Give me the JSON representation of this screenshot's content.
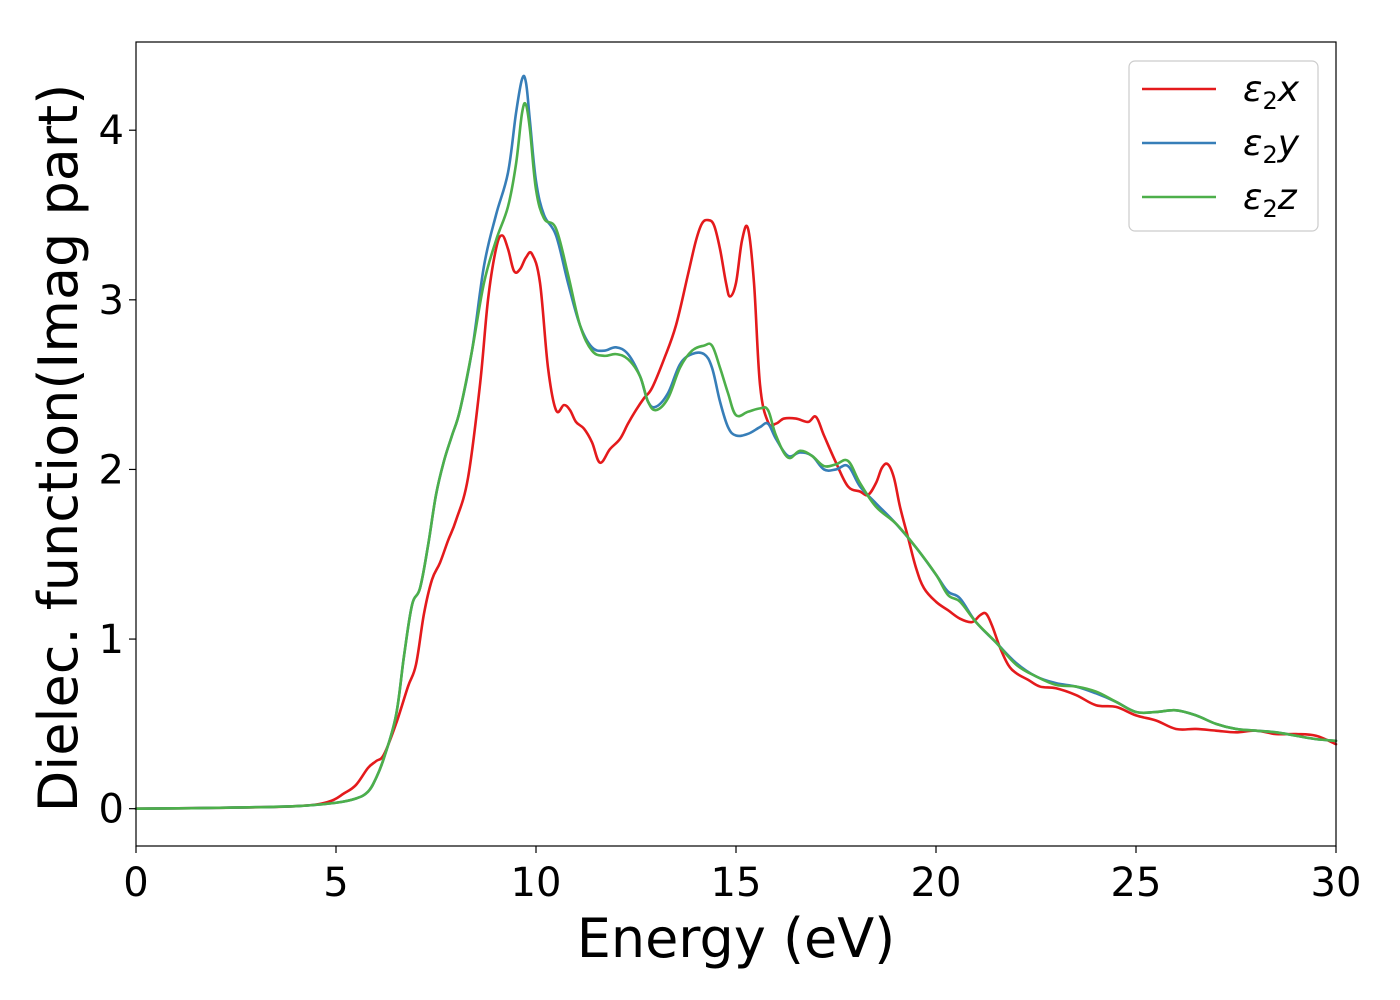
{
  "chart_data": {
    "type": "line",
    "title": "",
    "xlabel": "Energy (eV)",
    "ylabel": "Dielec. function(Imag part)",
    "xlim": [
      0,
      30
    ],
    "ylim": [
      -0.22,
      4.52
    ],
    "xticks": [
      0,
      5,
      10,
      15,
      20,
      25,
      30
    ],
    "yticks": [
      0,
      1,
      2,
      3,
      4
    ],
    "grid": false,
    "legend_position": "top-right",
    "series": [
      {
        "name": "ε2x",
        "legend_main": "ε",
        "legend_sub": "2",
        "legend_axis": "x",
        "color": "#e41a1c",
        "x": [
          0,
          2,
          4,
          4.8,
          5.2,
          5.5,
          5.8,
          6.0,
          6.2,
          6.5,
          6.8,
          7.0,
          7.2,
          7.4,
          7.6,
          7.8,
          8.0,
          8.3,
          8.6,
          8.8,
          9.0,
          9.15,
          9.3,
          9.45,
          9.6,
          9.75,
          9.9,
          10.1,
          10.3,
          10.5,
          10.7,
          10.85,
          11.0,
          11.2,
          11.4,
          11.6,
          11.85,
          12.1,
          12.3,
          12.5,
          12.7,
          12.9,
          13.2,
          13.5,
          13.8,
          14.0,
          14.15,
          14.3,
          14.45,
          14.6,
          14.75,
          14.85,
          15.0,
          15.15,
          15.3,
          15.45,
          15.6,
          15.8,
          16.0,
          16.2,
          16.5,
          16.8,
          17.0,
          17.2,
          17.5,
          17.8,
          18.1,
          18.3,
          18.5,
          18.65,
          18.8,
          18.95,
          19.1,
          19.3,
          19.5,
          19.7,
          20.0,
          20.3,
          20.6,
          20.9,
          21.1,
          21.25,
          21.4,
          21.6,
          21.8,
          22.0,
          22.3,
          22.6,
          23.0,
          23.5,
          24.0,
          24.5,
          25.0,
          25.5,
          26.0,
          26.5,
          27.0,
          27.5,
          28.0,
          28.5,
          29.0,
          29.5,
          30.0
        ],
        "y": [
          0.0,
          0.005,
          0.015,
          0.04,
          0.09,
          0.14,
          0.24,
          0.28,
          0.32,
          0.5,
          0.72,
          0.85,
          1.15,
          1.35,
          1.45,
          1.58,
          1.7,
          1.95,
          2.5,
          3.0,
          3.3,
          3.38,
          3.3,
          3.17,
          3.18,
          3.25,
          3.27,
          3.1,
          2.6,
          2.35,
          2.38,
          2.35,
          2.28,
          2.24,
          2.16,
          2.04,
          2.12,
          2.18,
          2.27,
          2.35,
          2.42,
          2.48,
          2.65,
          2.85,
          3.15,
          3.35,
          3.45,
          3.47,
          3.44,
          3.3,
          3.1,
          3.02,
          3.1,
          3.35,
          3.42,
          3.1,
          2.5,
          2.28,
          2.27,
          2.3,
          2.3,
          2.28,
          2.31,
          2.2,
          2.04,
          1.9,
          1.87,
          1.85,
          1.92,
          2.01,
          2.03,
          1.95,
          1.78,
          1.6,
          1.42,
          1.3,
          1.22,
          1.17,
          1.12,
          1.1,
          1.14,
          1.15,
          1.08,
          0.95,
          0.85,
          0.8,
          0.76,
          0.72,
          0.71,
          0.67,
          0.61,
          0.6,
          0.55,
          0.52,
          0.47,
          0.47,
          0.46,
          0.45,
          0.46,
          0.44,
          0.44,
          0.43,
          0.38
        ]
      },
      {
        "name": "ε2y",
        "legend_main": "ε",
        "legend_sub": "2",
        "legend_axis": "y",
        "color": "#377eb8",
        "x": [
          0,
          2,
          4,
          5.0,
          5.5,
          5.8,
          6.0,
          6.2,
          6.5,
          6.7,
          6.9,
          7.1,
          7.3,
          7.5,
          7.7,
          7.9,
          8.1,
          8.4,
          8.7,
          9.0,
          9.3,
          9.5,
          9.65,
          9.75,
          9.85,
          10.0,
          10.2,
          10.5,
          10.8,
          11.1,
          11.4,
          11.7,
          12.0,
          12.3,
          12.6,
          12.8,
          13.0,
          13.3,
          13.6,
          13.9,
          14.2,
          14.4,
          14.6,
          14.8,
          15.0,
          15.3,
          15.6,
          15.8,
          16.0,
          16.3,
          16.6,
          16.9,
          17.2,
          17.5,
          17.8,
          18.1,
          18.5,
          19.0,
          19.5,
          20.0,
          20.3,
          20.6,
          21.0,
          21.5,
          22.0,
          22.5,
          23.0,
          23.5,
          24.0,
          24.5,
          25.0,
          25.5,
          26.0,
          26.5,
          27.0,
          27.5,
          28.0,
          28.5,
          29.0,
          29.5,
          30.0
        ],
        "y": [
          0.0,
          0.005,
          0.015,
          0.035,
          0.06,
          0.1,
          0.18,
          0.3,
          0.55,
          0.9,
          1.2,
          1.3,
          1.55,
          1.85,
          2.05,
          2.2,
          2.35,
          2.7,
          3.2,
          3.5,
          3.75,
          4.1,
          4.3,
          4.28,
          4.05,
          3.7,
          3.5,
          3.38,
          3.1,
          2.85,
          2.72,
          2.7,
          2.72,
          2.68,
          2.55,
          2.4,
          2.37,
          2.45,
          2.62,
          2.68,
          2.68,
          2.6,
          2.4,
          2.25,
          2.2,
          2.21,
          2.25,
          2.27,
          2.18,
          2.08,
          2.1,
          2.08,
          2.0,
          2.0,
          2.02,
          1.9,
          1.8,
          1.68,
          1.54,
          1.38,
          1.28,
          1.24,
          1.1,
          0.98,
          0.86,
          0.78,
          0.74,
          0.72,
          0.68,
          0.63,
          0.57,
          0.57,
          0.58,
          0.55,
          0.5,
          0.47,
          0.46,
          0.45,
          0.43,
          0.41,
          0.4
        ]
      },
      {
        "name": "ε2z",
        "legend_main": "ε",
        "legend_sub": "2",
        "legend_axis": "z",
        "color": "#4daf4a",
        "x": [
          0,
          2,
          4,
          5.0,
          5.5,
          5.8,
          6.0,
          6.2,
          6.5,
          6.7,
          6.9,
          7.1,
          7.3,
          7.5,
          7.7,
          7.9,
          8.1,
          8.4,
          8.7,
          9.0,
          9.3,
          9.5,
          9.65,
          9.75,
          9.85,
          10.0,
          10.2,
          10.5,
          10.8,
          11.1,
          11.4,
          11.7,
          12.0,
          12.3,
          12.6,
          12.8,
          13.0,
          13.3,
          13.6,
          13.9,
          14.2,
          14.4,
          14.6,
          14.8,
          15.0,
          15.3,
          15.6,
          15.8,
          16.0,
          16.3,
          16.6,
          16.9,
          17.2,
          17.5,
          17.8,
          18.1,
          18.5,
          19.0,
          19.5,
          20.0,
          20.3,
          20.6,
          21.0,
          21.5,
          22.0,
          22.5,
          23.0,
          23.5,
          24.0,
          24.5,
          25.0,
          25.5,
          26.0,
          26.5,
          27.0,
          27.5,
          28.0,
          28.5,
          29.0,
          29.5,
          30.0
        ],
        "y": [
          0.0,
          0.005,
          0.015,
          0.035,
          0.06,
          0.1,
          0.18,
          0.3,
          0.55,
          0.9,
          1.2,
          1.3,
          1.55,
          1.85,
          2.05,
          2.2,
          2.35,
          2.7,
          3.1,
          3.35,
          3.55,
          3.8,
          4.1,
          4.15,
          4.0,
          3.65,
          3.48,
          3.42,
          3.15,
          2.85,
          2.7,
          2.67,
          2.68,
          2.65,
          2.55,
          2.4,
          2.35,
          2.42,
          2.6,
          2.7,
          2.73,
          2.73,
          2.6,
          2.45,
          2.32,
          2.34,
          2.36,
          2.35,
          2.2,
          2.07,
          2.11,
          2.08,
          2.02,
          2.03,
          2.05,
          1.92,
          1.78,
          1.68,
          1.54,
          1.38,
          1.26,
          1.22,
          1.1,
          0.98,
          0.85,
          0.78,
          0.73,
          0.72,
          0.69,
          0.63,
          0.57,
          0.57,
          0.58,
          0.55,
          0.5,
          0.47,
          0.46,
          0.45,
          0.43,
          0.41,
          0.4
        ]
      }
    ]
  }
}
